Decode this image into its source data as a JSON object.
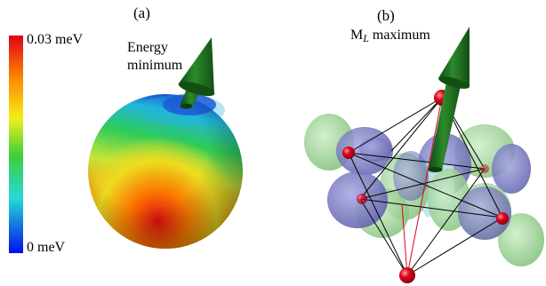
{
  "panel_a": {
    "label": "(a)",
    "colorbar": {
      "max_label": "0.03 meV",
      "min_label": "0 meV"
    },
    "annotation_line1": "Energy",
    "annotation_line2": "minimum"
  },
  "panel_b": {
    "label": "(b)",
    "annotation_main": "M",
    "annotation_sub": "L",
    "annotation_suffix": " maximum"
  },
  "colors": {
    "arrow": "#1f6b1f",
    "atom": "#e0001a",
    "lobe_green": "#9fd49a",
    "lobe_purple": "#7f7fc8",
    "center": "#bfe3ec"
  }
}
